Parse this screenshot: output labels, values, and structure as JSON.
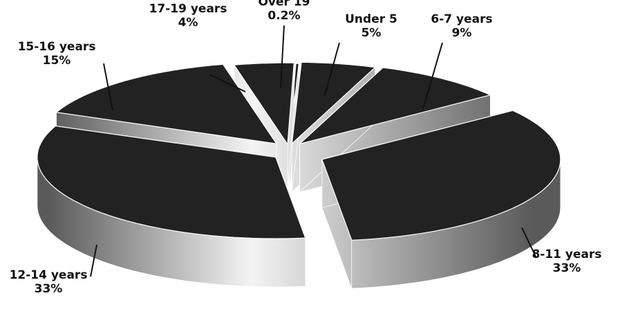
{
  "chart_data": {
    "type": "pie",
    "title": "",
    "style": "3d-exploded",
    "categories": [
      "Under 5",
      "6-7 years",
      "8-11 years",
      "12-14 years",
      "15-16 years",
      "17-19 years",
      "Over 19"
    ],
    "values": [
      5,
      9,
      33,
      33,
      15,
      4,
      0.2
    ],
    "value_labels": [
      "5%",
      "9%",
      "33%",
      "33%",
      "15%",
      "4%",
      "0.2%"
    ],
    "unit": "%",
    "legend": "none",
    "colors": {
      "top": "#222222",
      "side_dark": "#5a5a5a",
      "side_light": "#f4f4f4",
      "text": "#111111",
      "background": "#ffffff"
    }
  }
}
